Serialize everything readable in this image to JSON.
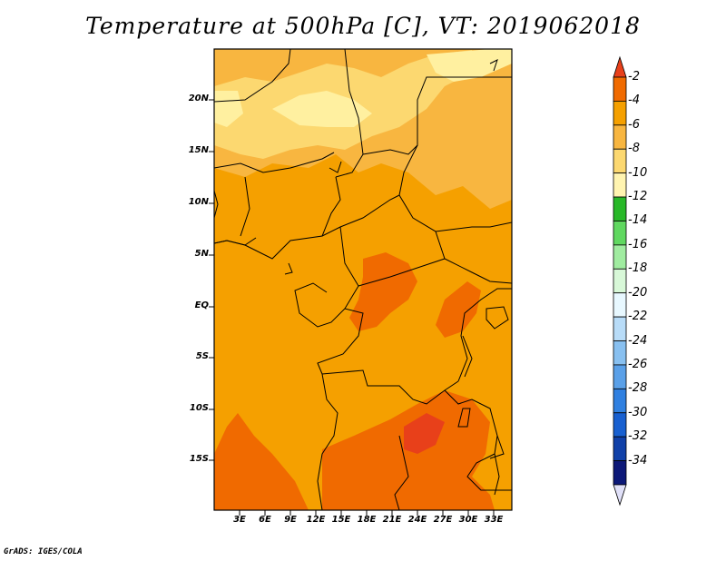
{
  "title": "Temperature at 500hPa [C], VT: 2019062018",
  "credit": "GrADS: IGES/COLA",
  "lat_labels": [
    "20N",
    "15N",
    "10N",
    "5N",
    "EQ",
    "5S",
    "10S",
    "15S"
  ],
  "lon_labels": [
    "3E",
    "6E",
    "9E",
    "12E",
    "15E",
    "18E",
    "21E",
    "24E",
    "27E",
    "30E",
    "33E"
  ],
  "colorbar": {
    "labels": [
      "-2",
      "-4",
      "-6",
      "-8",
      "-10",
      "-12",
      "-14",
      "-16",
      "-18",
      "-20",
      "-22",
      "-24",
      "-26",
      "-28",
      "-30",
      "-32",
      "-34"
    ],
    "colors": [
      "#e8401a",
      "#f06a00",
      "#f5a000",
      "#f8b640",
      "#fcd870",
      "#fff4b0",
      "#28b828",
      "#60d860",
      "#a0eca0",
      "#d8f8d8",
      "#e8f8ff",
      "#b8dcf8",
      "#88c0f0",
      "#5aa0e8",
      "#3080e0",
      "#1860d0",
      "#1040a8",
      "#0c1878",
      "#e0e0f8"
    ]
  },
  "fields": {
    "base_color": "#f5a000",
    "warm_color": "#f06a00",
    "hot_color": "#e8401a",
    "cool_color": "#f8b640",
    "cooler_color": "#fcd870",
    "coolest_color": "#fff0a0"
  }
}
